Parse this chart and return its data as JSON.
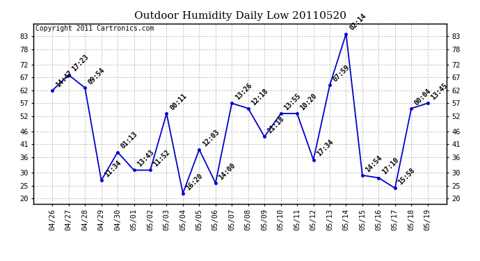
{
  "title": "Outdoor Humidity Daily Low 20110520",
  "copyright": "Copyright 2011 Cartronics.com",
  "dates": [
    "04/26",
    "04/27",
    "04/28",
    "04/29",
    "04/30",
    "05/01",
    "05/02",
    "05/03",
    "05/04",
    "05/05",
    "05/06",
    "05/07",
    "05/08",
    "05/09",
    "05/10",
    "05/11",
    "05/12",
    "05/13",
    "05/14",
    "05/15",
    "05/16",
    "05/17",
    "05/18",
    "05/19"
  ],
  "values": [
    62,
    68,
    63,
    27,
    38,
    31,
    31,
    53,
    22,
    39,
    26,
    57,
    55,
    44,
    53,
    53,
    35,
    64,
    84,
    29,
    28,
    24,
    55,
    57
  ],
  "labels": [
    "14:47",
    "17:23",
    "09:54",
    "11:34",
    "01:13",
    "13:43",
    "11:52",
    "00:11",
    "16:20",
    "12:03",
    "14:00",
    "13:26",
    "12:18",
    "21:18",
    "13:55",
    "10:20",
    "17:34",
    "07:59",
    "02:14",
    "14:54",
    "17:10",
    "15:58",
    "00:04",
    "13:45"
  ],
  "line_color": "#0000cc",
  "marker_color": "#0000cc",
  "background_color": "#ffffff",
  "grid_color": "#c0c0c0",
  "ylim": [
    18,
    88
  ],
  "yticks": [
    20,
    25,
    30,
    36,
    41,
    46,
    52,
    57,
    62,
    67,
    72,
    78,
    83
  ],
  "title_fontsize": 11,
  "label_fontsize": 7,
  "tick_fontsize": 7.5,
  "copyright_fontsize": 7
}
